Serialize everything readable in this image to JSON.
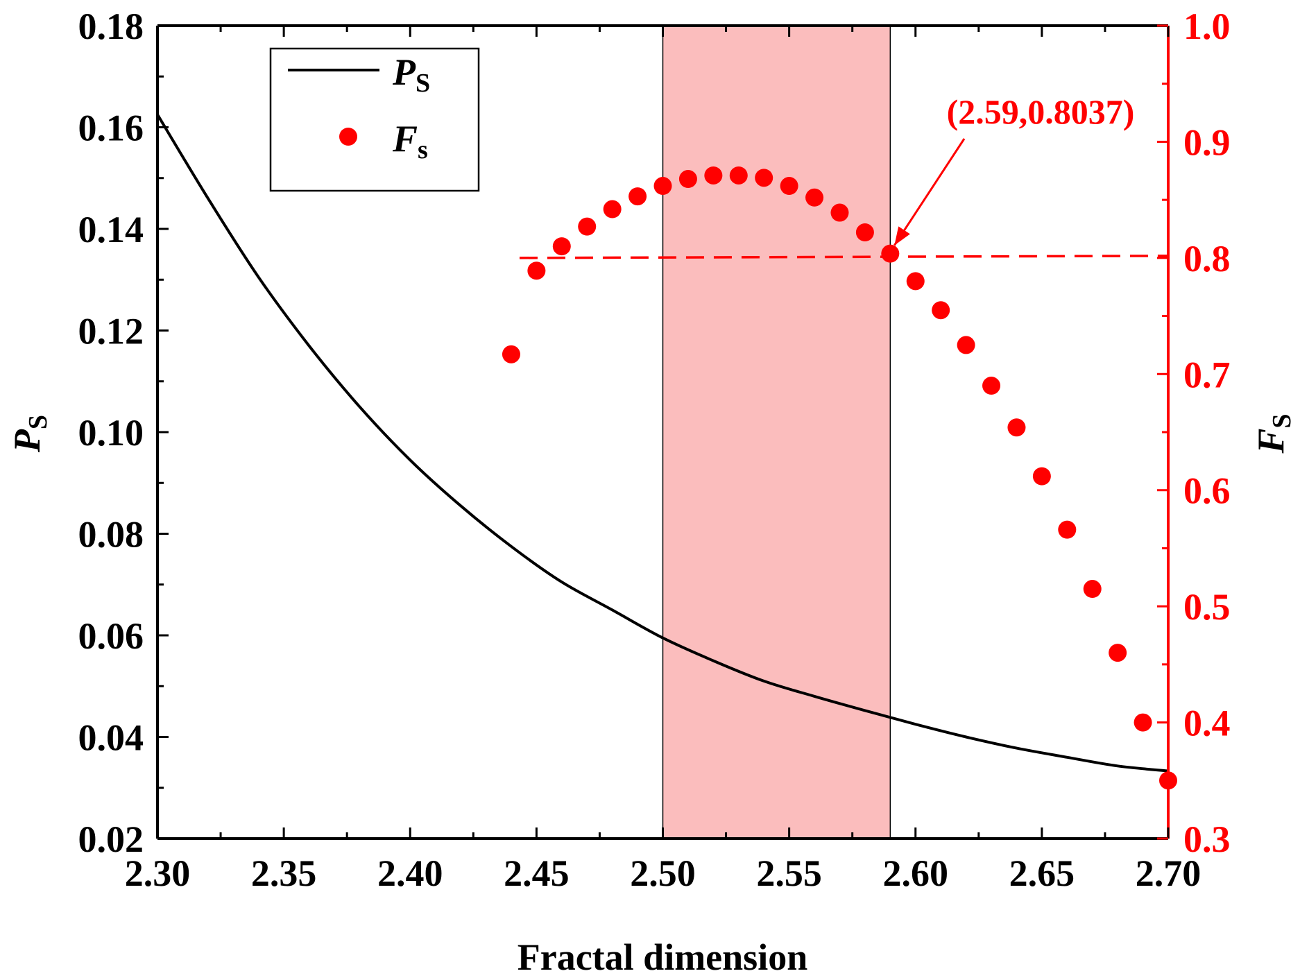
{
  "chart_data": {
    "type": "line",
    "xlabel": "Fractal dimension",
    "xlim": [
      2.3,
      2.7
    ],
    "x_ticks": [
      "2.30",
      "2.35",
      "2.40",
      "2.45",
      "2.50",
      "2.55",
      "2.60",
      "2.65",
      "2.70"
    ],
    "y_left": {
      "label_main": "P",
      "label_sub": "S",
      "lim": [
        0.02,
        0.18
      ],
      "ticks": [
        "0.02",
        "0.04",
        "0.06",
        "0.08",
        "0.10",
        "0.12",
        "0.14",
        "0.16",
        "0.18"
      ],
      "color": "#000000"
    },
    "y_right": {
      "label_main": "F",
      "label_sub": "S",
      "lim": [
        0.3,
        1.0
      ],
      "ticks": [
        "0.3",
        "0.4",
        "0.5",
        "0.6",
        "0.7",
        "0.8",
        "0.9",
        "1.0"
      ],
      "color": "#ff0000"
    },
    "series": [
      {
        "name": "P_S",
        "legend_main": "P",
        "legend_sub": "S",
        "style": "line",
        "color": "#000000",
        "axis": "left",
        "x": [
          2.3,
          2.32,
          2.34,
          2.36,
          2.38,
          2.4,
          2.42,
          2.44,
          2.46,
          2.48,
          2.5,
          2.52,
          2.54,
          2.56,
          2.58,
          2.6,
          2.62,
          2.64,
          2.66,
          2.68,
          2.7
        ],
        "y": [
          0.1625,
          0.146,
          0.1305,
          0.117,
          0.105,
          0.0945,
          0.0855,
          0.0775,
          0.0705,
          0.065,
          0.0595,
          0.055,
          0.051,
          0.048,
          0.0452,
          0.0425,
          0.04,
          0.0378,
          0.036,
          0.0343,
          0.0333
        ]
      },
      {
        "name": "F_S",
        "legend_main": "F",
        "legend_sub": "s",
        "style": "scatter",
        "color": "#ff0000",
        "axis": "right",
        "x": [
          2.44,
          2.45,
          2.46,
          2.47,
          2.48,
          2.49,
          2.5,
          2.51,
          2.52,
          2.53,
          2.54,
          2.55,
          2.56,
          2.57,
          2.58,
          2.59,
          2.6,
          2.61,
          2.62,
          2.63,
          2.64,
          2.65,
          2.66,
          2.67,
          2.68,
          2.69,
          2.7
        ],
        "y": [
          0.717,
          0.789,
          0.81,
          0.827,
          0.842,
          0.853,
          0.862,
          0.868,
          0.871,
          0.871,
          0.869,
          0.862,
          0.852,
          0.839,
          0.822,
          0.8037,
          0.78,
          0.755,
          0.725,
          0.69,
          0.654,
          0.612,
          0.566,
          0.515,
          0.46,
          0.4,
          0.35
        ]
      }
    ],
    "shaded_region": {
      "x_start": 2.5,
      "x_end": 2.59,
      "color": "#fbbdbd"
    },
    "threshold_line": {
      "axis": "right",
      "y": 0.8,
      "x_start": 2.44,
      "x_end": 2.7,
      "style": "dashed",
      "color": "#ff0000"
    },
    "annotation": {
      "text": "(2.59,0.8037)",
      "x": 2.59,
      "y": 0.8037,
      "color": "#ff0000"
    },
    "legend": {
      "position": "top-left",
      "entries": [
        "P_S",
        "F_S"
      ]
    }
  }
}
